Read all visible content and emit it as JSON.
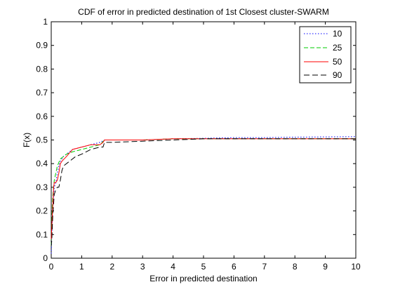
{
  "chart_data": {
    "type": "line",
    "title": "CDF of error in predicted destination of 1st Closest cluster-SWARM",
    "xlabel": "Error in predicted destination",
    "ylabel": "F(x)",
    "xlim": [
      0,
      10
    ],
    "ylim": [
      0,
      1
    ],
    "xticks": [
      "0",
      "1",
      "2",
      "3",
      "4",
      "5",
      "6",
      "7",
      "8",
      "9",
      "10"
    ],
    "yticks": [
      "0",
      "0.1",
      "0.2",
      "0.3",
      "0.4",
      "0.5",
      "0.6",
      "0.7",
      "0.8",
      "0.9",
      "1"
    ],
    "grid": false,
    "legend_position": "top-right",
    "series": [
      {
        "name": "10",
        "color": "#0000ff",
        "dash": "dotted",
        "x": [
          0,
          0.02,
          0.05,
          0.1,
          0.15,
          0.2,
          0.25,
          0.3,
          0.4,
          0.5,
          0.7,
          1.0,
          1.3,
          1.6,
          1.75,
          2.0,
          3.0,
          4.0,
          5.0,
          6.0,
          7.0,
          8.0,
          9.0,
          10.0
        ],
        "y": [
          0.02,
          0.1,
          0.22,
          0.3,
          0.32,
          0.36,
          0.39,
          0.41,
          0.43,
          0.44,
          0.46,
          0.47,
          0.48,
          0.49,
          0.5,
          0.5,
          0.5,
          0.505,
          0.507,
          0.51,
          0.51,
          0.512,
          0.513,
          0.514
        ]
      },
      {
        "name": "25",
        "color": "#00cc00",
        "dash": "dashed",
        "x": [
          0,
          0.02,
          0.05,
          0.1,
          0.15,
          0.2,
          0.3,
          0.4,
          0.5,
          0.7,
          1.0,
          1.3,
          1.6,
          1.75,
          2.0,
          3.0,
          4.0,
          5.0,
          6.0,
          7.0,
          8.0,
          9.0,
          10.0
        ],
        "y": [
          0.05,
          0.17,
          0.26,
          0.33,
          0.36,
          0.39,
          0.42,
          0.43,
          0.44,
          0.45,
          0.46,
          0.47,
          0.48,
          0.5,
          0.5,
          0.5,
          0.505,
          0.505,
          0.505,
          0.505,
          0.505,
          0.505,
          0.505
        ]
      },
      {
        "name": "50",
        "color": "#ff0000",
        "dash": "solid",
        "x": [
          0,
          0.02,
          0.05,
          0.08,
          0.1,
          0.15,
          0.2,
          0.25,
          0.3,
          0.35,
          0.5,
          0.7,
          1.0,
          1.3,
          1.6,
          1.7,
          1.75,
          2.0,
          3.0,
          4.0,
          5.0,
          6.0,
          7.0,
          8.0,
          9.0,
          10.0
        ],
        "y": [
          0.08,
          0.14,
          0.22,
          0.3,
          0.32,
          0.32,
          0.33,
          0.36,
          0.4,
          0.41,
          0.43,
          0.46,
          0.47,
          0.48,
          0.48,
          0.49,
          0.5,
          0.5,
          0.5,
          0.505,
          0.505,
          0.505,
          0.505,
          0.505,
          0.505,
          0.505
        ]
      },
      {
        "name": "90",
        "color": "#000000",
        "dash": "longdash",
        "x": [
          0,
          0.02,
          0.05,
          0.1,
          0.15,
          0.2,
          0.25,
          0.3,
          0.35,
          0.4,
          0.6,
          0.8,
          1.0,
          1.3,
          1.6,
          1.7,
          1.75,
          2.0,
          3.0,
          4.0,
          5.0,
          6.0,
          7.0,
          8.0,
          9.0,
          10.0
        ],
        "y": [
          0.05,
          0.08,
          0.18,
          0.27,
          0.29,
          0.3,
          0.3,
          0.33,
          0.37,
          0.39,
          0.41,
          0.43,
          0.44,
          0.46,
          0.47,
          0.47,
          0.49,
          0.49,
          0.495,
          0.5,
          0.505,
          0.505,
          0.505,
          0.505,
          0.505,
          0.505
        ]
      }
    ]
  }
}
